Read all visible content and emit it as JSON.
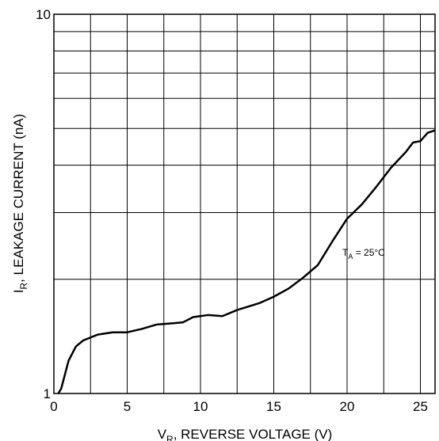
{
  "chart_data": {
    "type": "line",
    "log_y": true,
    "grid": true,
    "x_label": {
      "symbol": "V",
      "sub": "R",
      "text": ",  REVERSE VOLTAGE (V)"
    },
    "y_label": {
      "symbol": "I",
      "sub": "R",
      "text": ", LEAKAGE CURRENT (nA)"
    },
    "annotation": {
      "symbol": "T",
      "sub": "A",
      "text": " = 25°C"
    },
    "xlim": [
      0,
      26
    ],
    "xticks": [
      0,
      5,
      10,
      15,
      20,
      25
    ],
    "x_grid": [
      0,
      2.5,
      5,
      7.5,
      10,
      12.5,
      15,
      17.5,
      20,
      22.5,
      25
    ],
    "ylim": [
      1,
      10
    ],
    "yticks": [
      1,
      10
    ],
    "y_grid": [
      2,
      3,
      4,
      5,
      6,
      7,
      8,
      9
    ],
    "series": [
      {
        "color": "#000000",
        "x": [
          0.3,
          0.5,
          1,
          1.5,
          2,
          3,
          4,
          5,
          6,
          7,
          8,
          8.8,
          9.5,
          10.5,
          11.5,
          12.5,
          14,
          15,
          16,
          17,
          18,
          19,
          20,
          21,
          22,
          23,
          24,
          24.5,
          25,
          25.5,
          26
        ],
        "values": [
          1.0,
          1.03,
          1.22,
          1.33,
          1.38,
          1.43,
          1.45,
          1.45,
          1.48,
          1.52,
          1.53,
          1.54,
          1.59,
          1.61,
          1.6,
          1.66,
          1.73,
          1.8,
          1.89,
          2.02,
          2.18,
          2.52,
          2.89,
          3.15,
          3.51,
          3.94,
          4.33,
          4.59,
          4.63,
          4.87,
          4.94
        ]
      }
    ]
  }
}
